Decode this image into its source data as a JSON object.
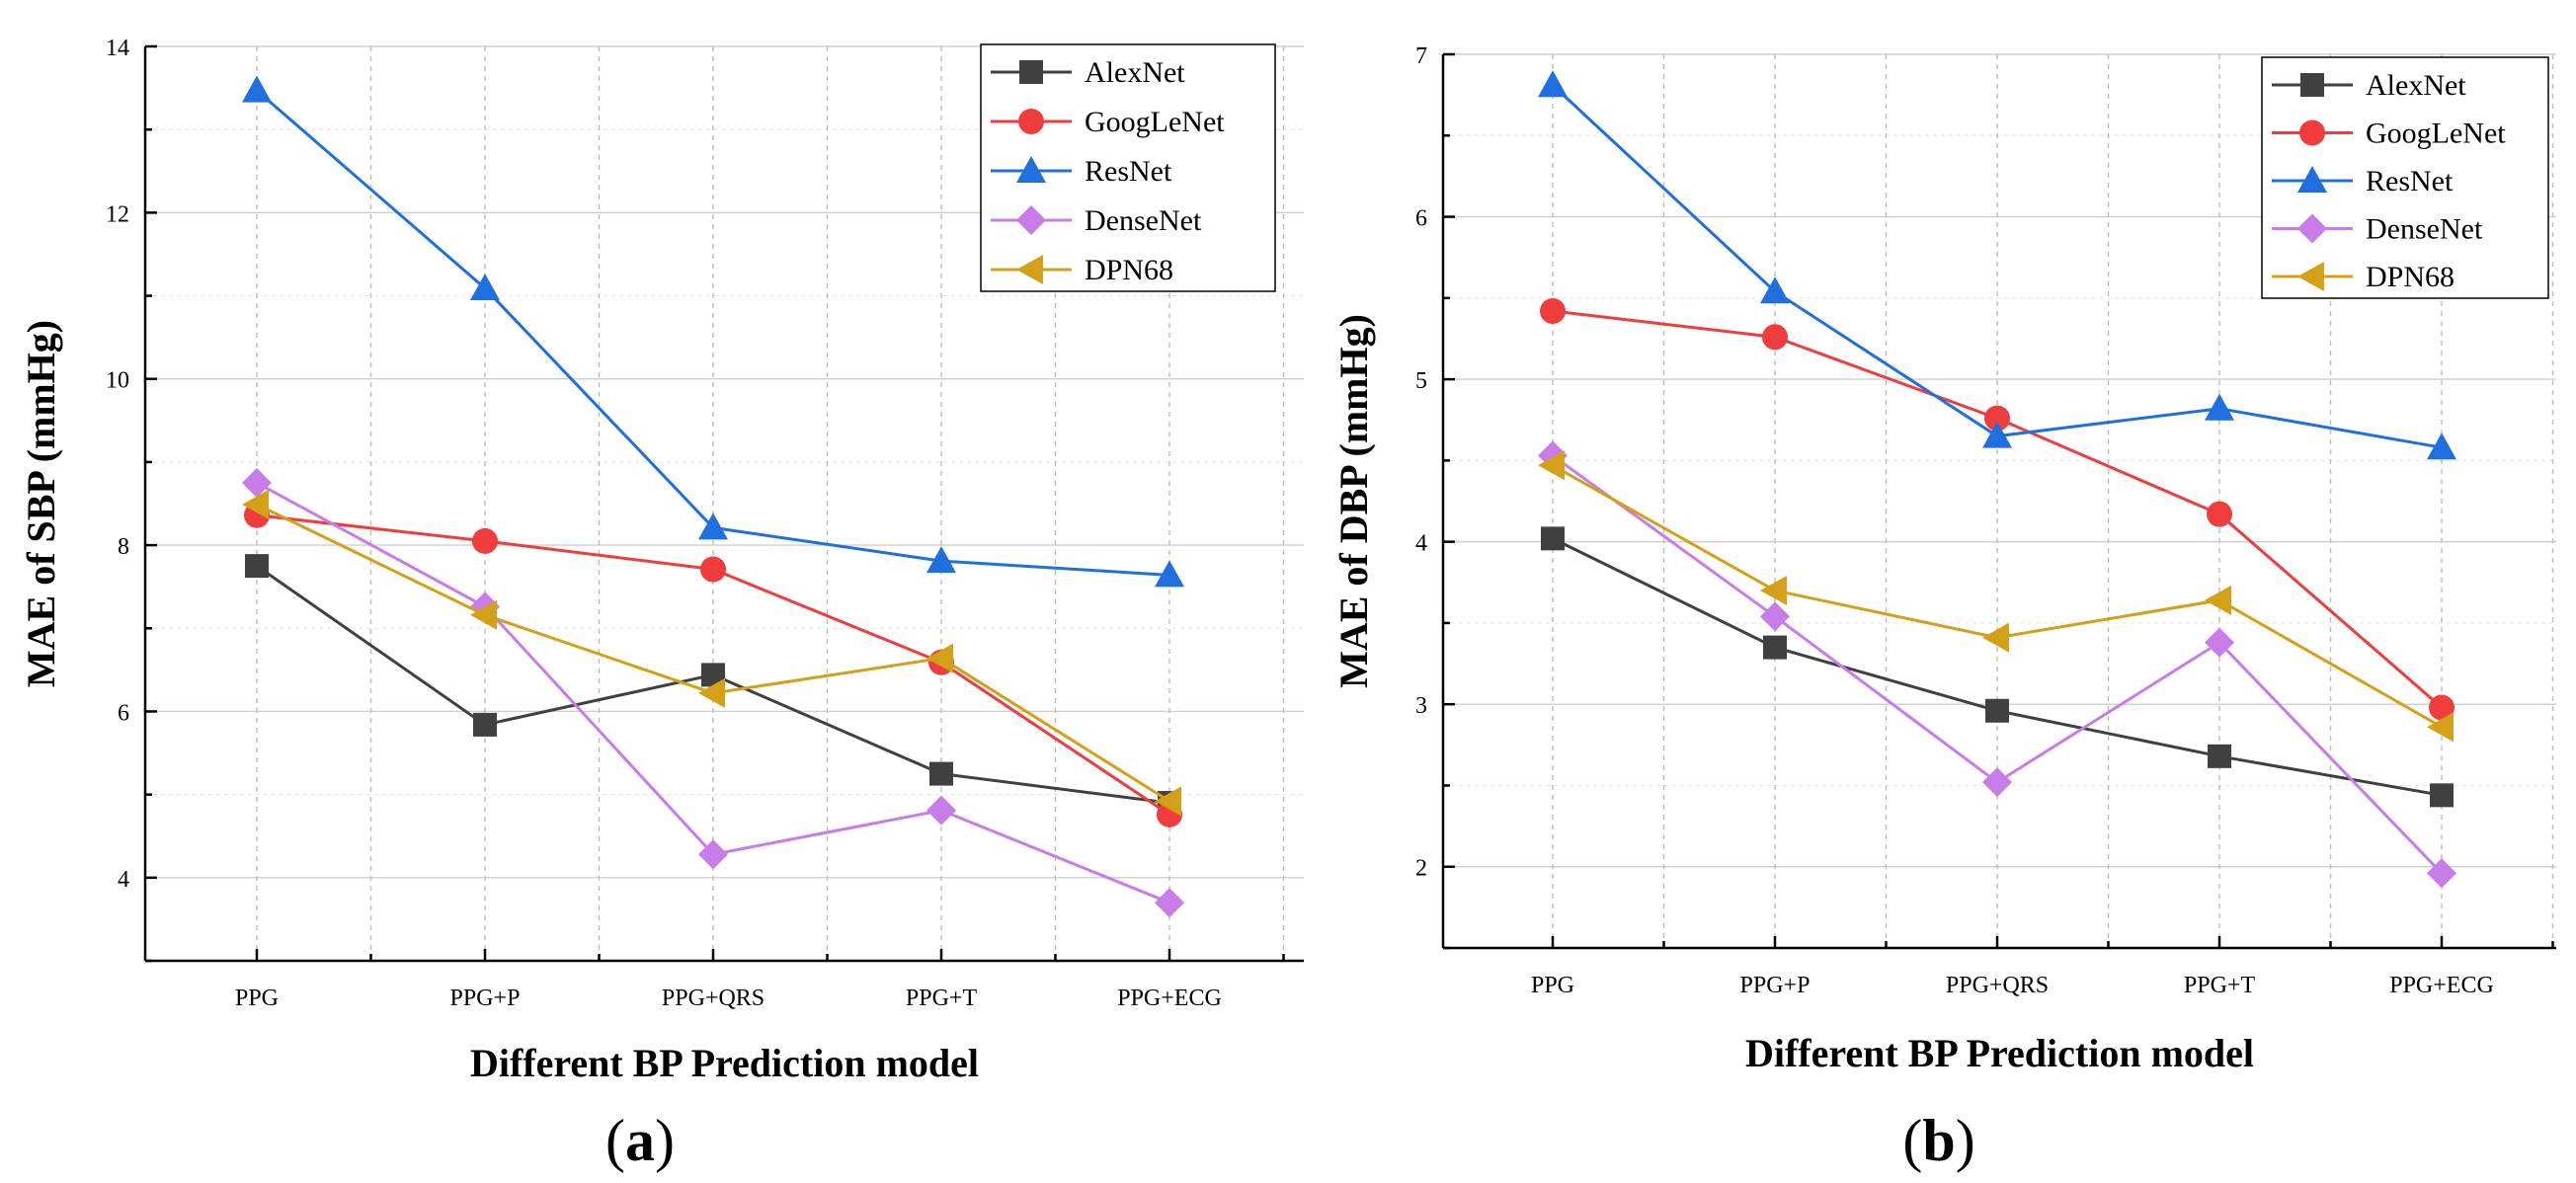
{
  "panels": [
    {
      "id": "a",
      "panel_label": "a",
      "chart_data": {
        "type": "line",
        "title": "",
        "xlabel": "Different BP Prediction model",
        "ylabel": "MAE of SBP (mmHg)",
        "categories": [
          "PPG",
          "PPG+P",
          "PPG+QRS",
          "PPG+T",
          "PPG+ECG"
        ],
        "ylim": [
          3,
          14
        ],
        "yticks": [
          4,
          6,
          8,
          10,
          12,
          14
        ],
        "grid": true,
        "legend_position": "top-right",
        "series": [
          {
            "name": "AlexNet",
            "color": "#404040",
            "marker": "square",
            "values": [
              7.75,
              5.84,
              6.44,
              5.25,
              4.9
            ]
          },
          {
            "name": "GoogLeNet",
            "color": "#f03c3c",
            "marker": "circle",
            "values": [
              8.36,
              8.05,
              7.71,
              6.59,
              4.76
            ]
          },
          {
            "name": "ResNet",
            "color": "#1f6fe0",
            "marker": "triangle-up",
            "values": [
              13.47,
              11.09,
              8.21,
              7.81,
              7.64
            ]
          },
          {
            "name": "DenseNet",
            "color": "#c77ce8",
            "marker": "diamond",
            "values": [
              8.75,
              7.26,
              4.28,
              4.81,
              3.7
            ]
          },
          {
            "name": "DPN68",
            "color": "#d4a017",
            "marker": "triangle-left",
            "values": [
              8.49,
              7.16,
              6.22,
              6.64,
              4.92
            ]
          }
        ]
      }
    },
    {
      "id": "b",
      "panel_label": "b",
      "chart_data": {
        "type": "line",
        "title": "",
        "xlabel": "Different BP Prediction model",
        "ylabel": "MAE of DBP (mmHg)",
        "categories": [
          "PPG",
          "PPG+P",
          "PPG+QRS",
          "PPG+T",
          "PPG+ECG"
        ],
        "ylim": [
          1.5,
          7
        ],
        "yticks": [
          2,
          3,
          4,
          5,
          6,
          7
        ],
        "grid": true,
        "legend_position": "top-right",
        "series": [
          {
            "name": "AlexNet",
            "color": "#404040",
            "marker": "square",
            "values": [
              4.02,
              3.35,
              2.96,
              2.68,
              2.44
            ]
          },
          {
            "name": "GoogLeNet",
            "color": "#f03c3c",
            "marker": "circle",
            "values": [
              5.42,
              5.26,
              4.76,
              4.17,
              2.98
            ]
          },
          {
            "name": "ResNet",
            "color": "#1f6fe0",
            "marker": "triangle-up",
            "values": [
              6.81,
              5.54,
              4.65,
              4.82,
              4.58
            ]
          },
          {
            "name": "DenseNet",
            "color": "#c77ce8",
            "marker": "diamond",
            "values": [
              4.53,
              3.54,
              2.52,
              3.38,
              1.96
            ]
          },
          {
            "name": "DPN68",
            "color": "#d4a017",
            "marker": "triangle-left",
            "values": [
              4.47,
              3.7,
              3.41,
              3.64,
              2.86
            ]
          }
        ]
      }
    }
  ]
}
